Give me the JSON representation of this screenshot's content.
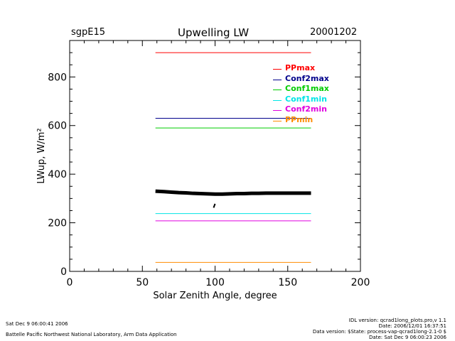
{
  "header": {
    "station": "sgpE15",
    "title": "Upwelling  LW",
    "date": "20001202"
  },
  "chart_data": {
    "type": "line",
    "title": "Upwelling  LW",
    "xlabel": "Solar  Zenith  Angle,  degree",
    "ylabel": "LWup,  W/m²",
    "xlim": [
      0,
      200
    ],
    "ylim": [
      0,
      950
    ],
    "x_ticks": [
      "0",
      "50",
      "100",
      "150",
      "200"
    ],
    "y_ticks": [
      "0",
      "200",
      "400",
      "600",
      "800"
    ],
    "legend_position": "top-right",
    "series": [
      {
        "name": "PPmax",
        "color": "#ff0000",
        "x": [
          59,
          166
        ],
        "y": [
          900,
          900
        ]
      },
      {
        "name": "Conf2max",
        "color": "#00008b",
        "x": [
          59,
          166
        ],
        "y": [
          630,
          630
        ]
      },
      {
        "name": "Conf1max",
        "color": "#00cc00",
        "x": [
          59,
          166
        ],
        "y": [
          590,
          590
        ]
      },
      {
        "name": "Conf1min",
        "color": "#00e5e5",
        "x": [
          59,
          166
        ],
        "y": [
          238,
          238
        ]
      },
      {
        "name": "Conf2min",
        "color": "#e000e0",
        "x": [
          59,
          166
        ],
        "y": [
          208,
          208
        ]
      },
      {
        "name": "PPmin",
        "color": "#ff8c00",
        "x": [
          59,
          166
        ],
        "y": [
          37,
          37
        ]
      }
    ],
    "observations": {
      "color": "#000000",
      "x": [
        59,
        65,
        70,
        75,
        80,
        85,
        90,
        95,
        100,
        105,
        110,
        115,
        120,
        125,
        130,
        135,
        140,
        145,
        150,
        155,
        160,
        166
      ],
      "y": [
        330,
        328,
        326,
        324,
        323,
        321,
        320,
        319,
        318,
        318,
        319,
        320,
        320,
        321,
        321,
        322,
        322,
        322,
        322,
        322,
        322,
        322
      ],
      "spike_x": [
        99,
        100
      ],
      "spike_y": [
        262,
        278
      ]
    }
  },
  "footer": {
    "left_line1": "Sat Dec  9 06:00:41 2006",
    "left_line2": "Battelle Pacific Northwest National Laboratory, Arm Data Application",
    "right_line1": "IDL version: qcrad1long_plots.pro,v 1.1",
    "right_line2": "Date: 2006/12/01 16:37:51",
    "right_line3": "Data version: $State: process-vap-qcrad1long-2.1-0 $",
    "right_line4": "Date: Sat Dec  9 06:00:23 2006"
  }
}
